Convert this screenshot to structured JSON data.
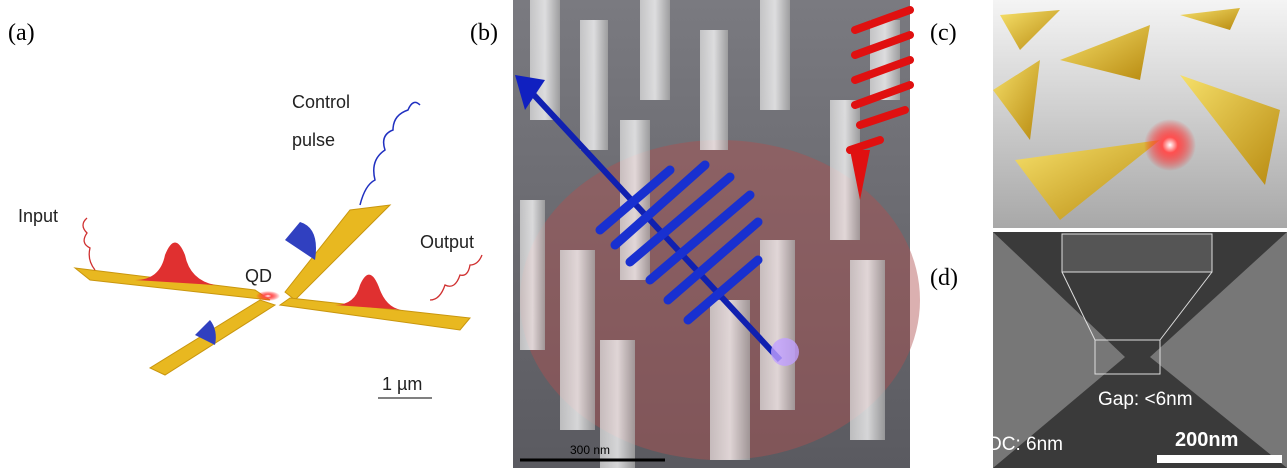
{
  "panels": [
    {
      "label": "(a)",
      "texts": {
        "control": "Control",
        "pulse": "pulse",
        "input": "Input",
        "output": "Output",
        "qd": "QD",
        "scale": "1 µm"
      }
    },
    {
      "label": "(b)",
      "texts": {
        "scale": "300 nm"
      }
    },
    {
      "label": "(c)"
    },
    {
      "label": "(d)",
      "texts": {
        "gap": "Gap: <6nm",
        "dc": "DC: 6nm",
        "scale": "200nm"
      }
    }
  ]
}
